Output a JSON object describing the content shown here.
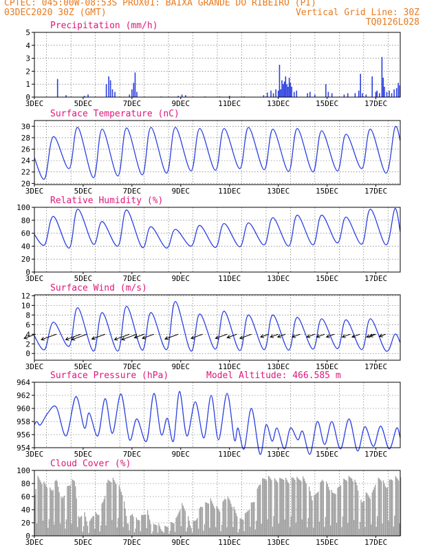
{
  "header": {
    "line1_left": "CPTEC:  045:00W-08:53S  PROX01: BAIXA GRANDE DO RIBEIRO (PI)",
    "line2_left": "03DEC2020 30Z (GMT)",
    "line2_right": "Vertical Grid Line: 30Z",
    "line3_right": "TQ0126L028"
  },
  "colors": {
    "header": "#e87a1e",
    "title": "#e0157a",
    "series": "#2a3fe0",
    "cloud": "#9e9e9e",
    "wind_arrow": "#000000",
    "grid": "#555555"
  },
  "x_tick_labels": [
    "3DEC",
    "5DEC",
    "7DEC",
    "9DEC",
    "11DEC",
    "13DEC",
    "15DEC",
    "17DEC"
  ],
  "chart_data": [
    {
      "id": "precip",
      "type": "bar",
      "title": "Precipitation (mm/h)",
      "ylim": [
        0,
        5
      ],
      "yticks": [
        0,
        1,
        2,
        3,
        4,
        5
      ],
      "x_days": [
        3,
        18
      ],
      "grid": "dotted",
      "bars": [
        [
          3.95,
          1.4
        ],
        [
          4.3,
          0.15
        ],
        [
          5.05,
          0.1
        ],
        [
          5.2,
          0.2
        ],
        [
          5.95,
          1.0
        ],
        [
          6.05,
          1.6
        ],
        [
          6.12,
          1.3
        ],
        [
          6.2,
          0.6
        ],
        [
          6.3,
          0.4
        ],
        [
          6.9,
          0.2
        ],
        [
          7.0,
          0.6
        ],
        [
          7.07,
          1.1
        ],
        [
          7.13,
          1.9
        ],
        [
          7.2,
          0.4
        ],
        [
          8.2,
          0.05
        ],
        [
          8.9,
          0.1
        ],
        [
          9.05,
          0.2
        ],
        [
          9.2,
          0.15
        ],
        [
          10.0,
          0.05
        ],
        [
          10.6,
          0.05
        ],
        [
          11.0,
          0.1
        ],
        [
          11.6,
          0.05
        ],
        [
          12.4,
          0.15
        ],
        [
          12.55,
          0.35
        ],
        [
          12.7,
          0.5
        ],
        [
          12.8,
          0.3
        ],
        [
          12.9,
          0.6
        ],
        [
          13.0,
          0.5
        ],
        [
          13.05,
          2.5
        ],
        [
          13.1,
          0.6
        ],
        [
          13.15,
          1.3
        ],
        [
          13.2,
          1.0
        ],
        [
          13.25,
          1.2
        ],
        [
          13.3,
          1.6
        ],
        [
          13.35,
          1.0
        ],
        [
          13.4,
          0.8
        ],
        [
          13.45,
          1.5
        ],
        [
          13.5,
          1.1
        ],
        [
          13.55,
          0.8
        ],
        [
          13.65,
          0.4
        ],
        [
          13.75,
          0.5
        ],
        [
          14.2,
          0.3
        ],
        [
          14.3,
          0.4
        ],
        [
          14.5,
          0.2
        ],
        [
          14.95,
          1.0
        ],
        [
          15.05,
          0.4
        ],
        [
          15.2,
          0.3
        ],
        [
          15.7,
          0.2
        ],
        [
          15.85,
          0.3
        ],
        [
          16.15,
          0.3
        ],
        [
          16.3,
          0.5
        ],
        [
          16.37,
          1.8
        ],
        [
          16.45,
          0.3
        ],
        [
          16.6,
          0.2
        ],
        [
          16.85,
          1.6
        ],
        [
          17.0,
          0.4
        ],
        [
          17.05,
          0.5
        ],
        [
          17.15,
          0.3
        ],
        [
          17.25,
          3.1
        ],
        [
          17.3,
          1.5
        ],
        [
          17.35,
          0.8
        ],
        [
          17.45,
          0.4
        ],
        [
          17.55,
          0.5
        ],
        [
          17.65,
          0.3
        ],
        [
          17.75,
          0.6
        ],
        [
          17.85,
          0.7
        ],
        [
          17.92,
          1.1
        ],
        [
          17.98,
          0.9
        ]
      ]
    },
    {
      "id": "temp",
      "type": "line",
      "title": "Surface Temperature (nC)",
      "ylim": [
        19.8,
        31
      ],
      "yticks": [
        20,
        22,
        24,
        26,
        28,
        30
      ],
      "x_days": [
        3,
        18
      ],
      "grid": "dotted",
      "min_values": [
        20.8,
        22.6,
        21.0,
        21.3,
        21.5,
        21.8,
        22.2,
        22.3,
        22.6,
        22.4,
        22.1,
        22.0,
        22.2,
        22.6,
        21.8
      ],
      "max_values": [
        28.2,
        29.8,
        29.5,
        29.7,
        29.8,
        29.8,
        29.6,
        29.6,
        29.8,
        29.5,
        29.6,
        29.2,
        28.6,
        29.5,
        29.8
      ],
      "end_value": 27.5
    },
    {
      "id": "rh",
      "type": "line",
      "title": "Relative Humidity (%)",
      "ylim": [
        0,
        100
      ],
      "yticks": [
        0,
        20,
        40,
        60,
        80,
        100
      ],
      "x_days": [
        3,
        18
      ],
      "grid": "dotted",
      "min_values": [
        42,
        37,
        43,
        40,
        38,
        37,
        40,
        38,
        39,
        42,
        40,
        42,
        45,
        43,
        42
      ],
      "max_values": [
        86,
        97,
        78,
        96,
        70,
        66,
        72,
        75,
        76,
        84,
        88,
        88,
        85,
        97,
        98
      ],
      "start_value": 58,
      "end_value": 62
    },
    {
      "id": "wind",
      "type": "line",
      "title": "Surface Wind (m/s)",
      "ylim": [
        -1.4,
        12.2
      ],
      "yticks": [
        0,
        2,
        4,
        6,
        8,
        10,
        12
      ],
      "x_days": [
        3,
        18
      ],
      "grid": "dotted",
      "min_values": [
        0.8,
        1.5,
        0.5,
        0.5,
        0.7,
        0.8,
        0.5,
        0.9,
        0.6,
        0.8,
        0.7,
        0.9,
        1.0,
        0.8,
        0.5
      ],
      "max_values": [
        6.5,
        9.5,
        8.5,
        9.8,
        8.5,
        10.8,
        8.2,
        8.8,
        8.0,
        8.0,
        7.5,
        7.2,
        7.0,
        7.2,
        4.0
      ],
      "arrows": [
        {
          "day": 3.05,
          "speed": 2.5,
          "dir": "SW"
        },
        {
          "day": 3.9,
          "speed": 3.5,
          "dir": "SW"
        },
        {
          "day": 4.9,
          "speed": 3.5,
          "dir": "SW"
        },
        {
          "day": 5.15,
          "speed": 3.5,
          "dir": "SW"
        },
        {
          "day": 5.9,
          "speed": 3.0,
          "dir": "SW"
        },
        {
          "day": 6.9,
          "speed": 3.5,
          "dir": "SW"
        },
        {
          "day": 7.2,
          "speed": 3.5,
          "dir": "SW"
        },
        {
          "day": 7.5,
          "speed": 2.0,
          "dir": "SW"
        },
        {
          "day": 7.9,
          "speed": 2.5,
          "dir": "SW"
        },
        {
          "day": 8.9,
          "speed": 3.0,
          "dir": "SW"
        },
        {
          "day": 9.9,
          "speed": 2.5,
          "dir": "SW"
        },
        {
          "day": 10.9,
          "speed": 2.5,
          "dir": "SW"
        },
        {
          "day": 11.3,
          "speed": 2.0,
          "dir": "SW"
        },
        {
          "day": 11.9,
          "speed": 2.5,
          "dir": "SW"
        },
        {
          "day": 12.6,
          "speed": 1.5,
          "dir": "SW"
        },
        {
          "day": 13.0,
          "speed": 1.5,
          "dir": "SW"
        },
        {
          "day": 13.3,
          "speed": 1.5,
          "dir": "SW"
        },
        {
          "day": 13.9,
          "speed": 1.5,
          "dir": "SW"
        },
        {
          "day": 14.5,
          "speed": 1.5,
          "dir": "SW"
        },
        {
          "day": 14.9,
          "speed": 1.5,
          "dir": "SW"
        },
        {
          "day": 15.3,
          "speed": 1.5,
          "dir": "SW"
        },
        {
          "day": 15.95,
          "speed": 1.5,
          "dir": "SW"
        },
        {
          "day": 16.35,
          "speed": 1.5,
          "dir": "SW"
        },
        {
          "day": 16.95,
          "speed": 1.5,
          "dir": "SW"
        },
        {
          "day": 17.0,
          "speed": 1.0,
          "dir": "SW"
        },
        {
          "day": 17.4,
          "speed": 1.0,
          "dir": "SW"
        }
      ]
    },
    {
      "id": "pres",
      "type": "line",
      "title": "Surface Pressure (hPa)",
      "annotation": "Model Altitude: 466.585 m",
      "ylim": [
        954,
        964
      ],
      "yticks": [
        954,
        956,
        958,
        960,
        962,
        964
      ],
      "x_days": [
        3,
        18
      ],
      "grid": "dotted",
      "points": [
        [
          3.0,
          957.5
        ],
        [
          3.1,
          958.0
        ],
        [
          3.25,
          957.5
        ],
        [
          3.55,
          959.3
        ],
        [
          3.9,
          960.2
        ],
        [
          4.3,
          955.8
        ],
        [
          4.7,
          961.8
        ],
        [
          5.05,
          957.0
        ],
        [
          5.25,
          959.3
        ],
        [
          5.6,
          955.8
        ],
        [
          5.9,
          961.5
        ],
        [
          6.2,
          956.2
        ],
        [
          6.55,
          962.2
        ],
        [
          6.9,
          955.2
        ],
        [
          7.2,
          958.4
        ],
        [
          7.6,
          955.0
        ],
        [
          7.9,
          962.3
        ],
        [
          8.2,
          956.0
        ],
        [
          8.45,
          958.5
        ],
        [
          8.7,
          955.0
        ],
        [
          8.95,
          962.6
        ],
        [
          9.25,
          955.8
        ],
        [
          9.6,
          961.0
        ],
        [
          9.95,
          955.5
        ],
        [
          10.25,
          962.0
        ],
        [
          10.55,
          955.2
        ],
        [
          10.9,
          962.3
        ],
        [
          11.2,
          955.2
        ],
        [
          11.35,
          957.0
        ],
        [
          11.6,
          953.8
        ],
        [
          11.9,
          960.0
        ],
        [
          12.25,
          953.0
        ],
        [
          12.5,
          957.5
        ],
        [
          12.75,
          955.0
        ],
        [
          12.95,
          957.0
        ],
        [
          13.25,
          953.8
        ],
        [
          13.5,
          957.0
        ],
        [
          13.8,
          955.2
        ],
        [
          14.0,
          956.5
        ],
        [
          14.3,
          953.0
        ],
        [
          14.6,
          958.0
        ],
        [
          14.9,
          954.5
        ],
        [
          15.2,
          958.0
        ],
        [
          15.55,
          953.8
        ],
        [
          15.9,
          958.4
        ],
        [
          16.25,
          953.5
        ],
        [
          16.55,
          957.2
        ],
        [
          16.9,
          954.2
        ],
        [
          17.2,
          957.3
        ],
        [
          17.55,
          953.8
        ],
        [
          17.85,
          957.0
        ],
        [
          18.0,
          955.5
        ]
      ]
    },
    {
      "id": "cloud",
      "type": "area",
      "title": "Cloud Cover (%)",
      "ylim": [
        0,
        100
      ],
      "yticks": [
        0,
        20,
        40,
        60,
        80,
        100
      ],
      "x_days": [
        3,
        18
      ],
      "grid": "dotted",
      "profile": [
        [
          3.0,
          70
        ],
        [
          3.1,
          95
        ],
        [
          3.4,
          85
        ],
        [
          3.7,
          75
        ],
        [
          3.9,
          92
        ],
        [
          4.1,
          60
        ],
        [
          4.3,
          78
        ],
        [
          4.5,
          88
        ],
        [
          4.65,
          90
        ],
        [
          4.8,
          30
        ],
        [
          5.0,
          45
        ],
        [
          5.2,
          20
        ],
        [
          5.4,
          40
        ],
        [
          5.6,
          38
        ],
        [
          5.8,
          58
        ],
        [
          6.0,
          90
        ],
        [
          6.2,
          92
        ],
        [
          6.4,
          85
        ],
        [
          6.6,
          70
        ],
        [
          6.8,
          25
        ],
        [
          7.0,
          40
        ],
        [
          7.2,
          30
        ],
        [
          7.4,
          35
        ],
        [
          7.6,
          45
        ],
        [
          7.8,
          20
        ],
        [
          8.0,
          25
        ],
        [
          8.2,
          15
        ],
        [
          8.4,
          20
        ],
        [
          8.6,
          25
        ],
        [
          8.8,
          30
        ],
        [
          9.0,
          55
        ],
        [
          9.2,
          45
        ],
        [
          9.4,
          20
        ],
        [
          9.6,
          30
        ],
        [
          9.8,
          50
        ],
        [
          10.0,
          55
        ],
        [
          10.2,
          60
        ],
        [
          10.4,
          50
        ],
        [
          10.6,
          45
        ],
        [
          10.8,
          65
        ],
        [
          11.0,
          60
        ],
        [
          11.2,
          45
        ],
        [
          11.4,
          30
        ],
        [
          11.6,
          35
        ],
        [
          11.8,
          50
        ],
        [
          12.0,
          60
        ],
        [
          12.2,
          85
        ],
        [
          12.4,
          93
        ],
        [
          12.6,
          95
        ],
        [
          12.8,
          92
        ],
        [
          13.0,
          90
        ],
        [
          13.2,
          95
        ],
        [
          13.4,
          88
        ],
        [
          13.6,
          95
        ],
        [
          13.8,
          92
        ],
        [
          14.0,
          94
        ],
        [
          14.2,
          85
        ],
        [
          14.4,
          60
        ],
        [
          14.6,
          75
        ],
        [
          14.8,
          93
        ],
        [
          15.0,
          85
        ],
        [
          15.2,
          70
        ],
        [
          15.4,
          75
        ],
        [
          15.6,
          90
        ],
        [
          15.8,
          93
        ],
        [
          16.0,
          95
        ],
        [
          16.2,
          85
        ],
        [
          16.4,
          55
        ],
        [
          16.6,
          70
        ],
        [
          16.8,
          65
        ],
        [
          17.0,
          92
        ],
        [
          17.2,
          93
        ],
        [
          17.4,
          80
        ],
        [
          17.6,
          92
        ],
        [
          17.8,
          95
        ],
        [
          18.0,
          92
        ]
      ]
    }
  ]
}
